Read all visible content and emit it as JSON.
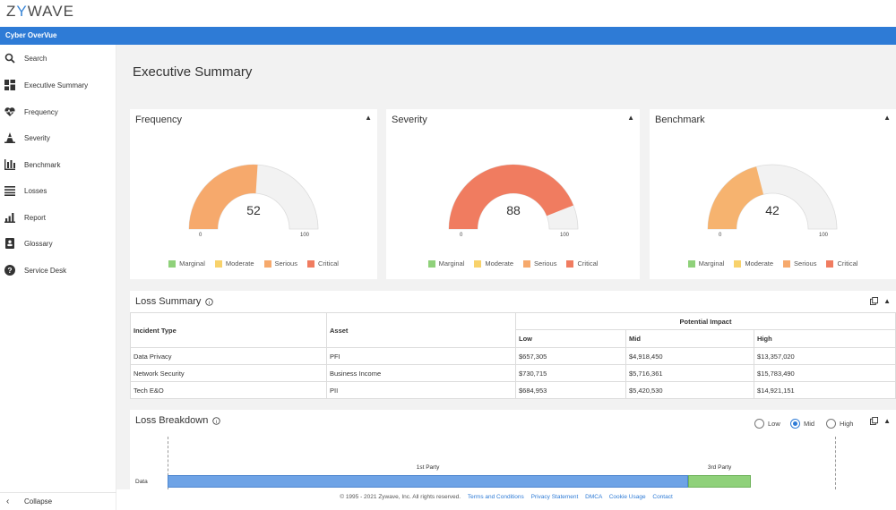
{
  "brand": {
    "logo_pre": "Z",
    "logo_mid": "Y",
    "logo_post": "WAVE"
  },
  "app": {
    "title": "Cyber OverVue"
  },
  "sidebar": {
    "items": [
      {
        "label": "Search",
        "icon": "search-icon"
      },
      {
        "label": "Executive Summary",
        "icon": "dashboard-icon"
      },
      {
        "label": "Frequency",
        "icon": "heartbeat-icon"
      },
      {
        "label": "Severity",
        "icon": "cone-icon"
      },
      {
        "label": "Benchmark",
        "icon": "bar-chart-icon"
      },
      {
        "label": "Losses",
        "icon": "list-icon"
      },
      {
        "label": "Report",
        "icon": "report-icon"
      },
      {
        "label": "Glossary",
        "icon": "book-icon"
      },
      {
        "label": "Service Desk",
        "icon": "help-icon"
      }
    ],
    "collapse_label": "Collapse"
  },
  "page": {
    "title": "Executive Summary"
  },
  "gauges": [
    {
      "title": "Frequency",
      "value": 52,
      "min": "0",
      "max": "100",
      "color": "#f6a96c"
    },
    {
      "title": "Severity",
      "value": 88,
      "min": "0",
      "max": "100",
      "color": "#f07c60"
    },
    {
      "title": "Benchmark",
      "value": 42,
      "min": "0",
      "max": "100",
      "color": "#f6b36f"
    }
  ],
  "legend": [
    {
      "label": "Marginal",
      "color": "#8fd17a"
    },
    {
      "label": "Moderate",
      "color": "#f8d26b"
    },
    {
      "label": "Serious",
      "color": "#f6a96c"
    },
    {
      "label": "Critical",
      "color": "#f07c60"
    }
  ],
  "loss_summary": {
    "title": "Loss Summary",
    "headers": {
      "incident": "Incident Type",
      "asset": "Asset",
      "impact": "Potential Impact",
      "low": "Low",
      "mid": "Mid",
      "high": "High"
    },
    "rows": [
      {
        "incident": "Data Privacy",
        "asset": "PFI",
        "low": "$657,305",
        "mid": "$4,918,450",
        "high": "$13,357,020"
      },
      {
        "incident": "Network Security",
        "asset": "Business Income",
        "low": "$730,715",
        "mid": "$5,716,361",
        "high": "$15,783,490"
      },
      {
        "incident": "Tech E&O",
        "asset": "PII",
        "low": "$684,953",
        "mid": "$5,420,530",
        "high": "$14,921,151"
      }
    ]
  },
  "loss_breakdown": {
    "title": "Loss Breakdown",
    "options": [
      "Low",
      "Mid",
      "High"
    ],
    "selected": "Mid",
    "row_label": "Data",
    "first_party_label": "1st Party",
    "third_party_label": "3rd Party",
    "first_party_share": 0.78,
    "third_party_share": 0.094,
    "first_color": "#6ea3e6",
    "third_color": "#8fd17a"
  },
  "footer": {
    "copyright": "© 1995 - 2021 Zywave, Inc. All rights reserved.",
    "links": [
      "Terms and Conditions",
      "Privacy Statement",
      "DMCA",
      "Cookie Usage",
      "Contact"
    ]
  }
}
